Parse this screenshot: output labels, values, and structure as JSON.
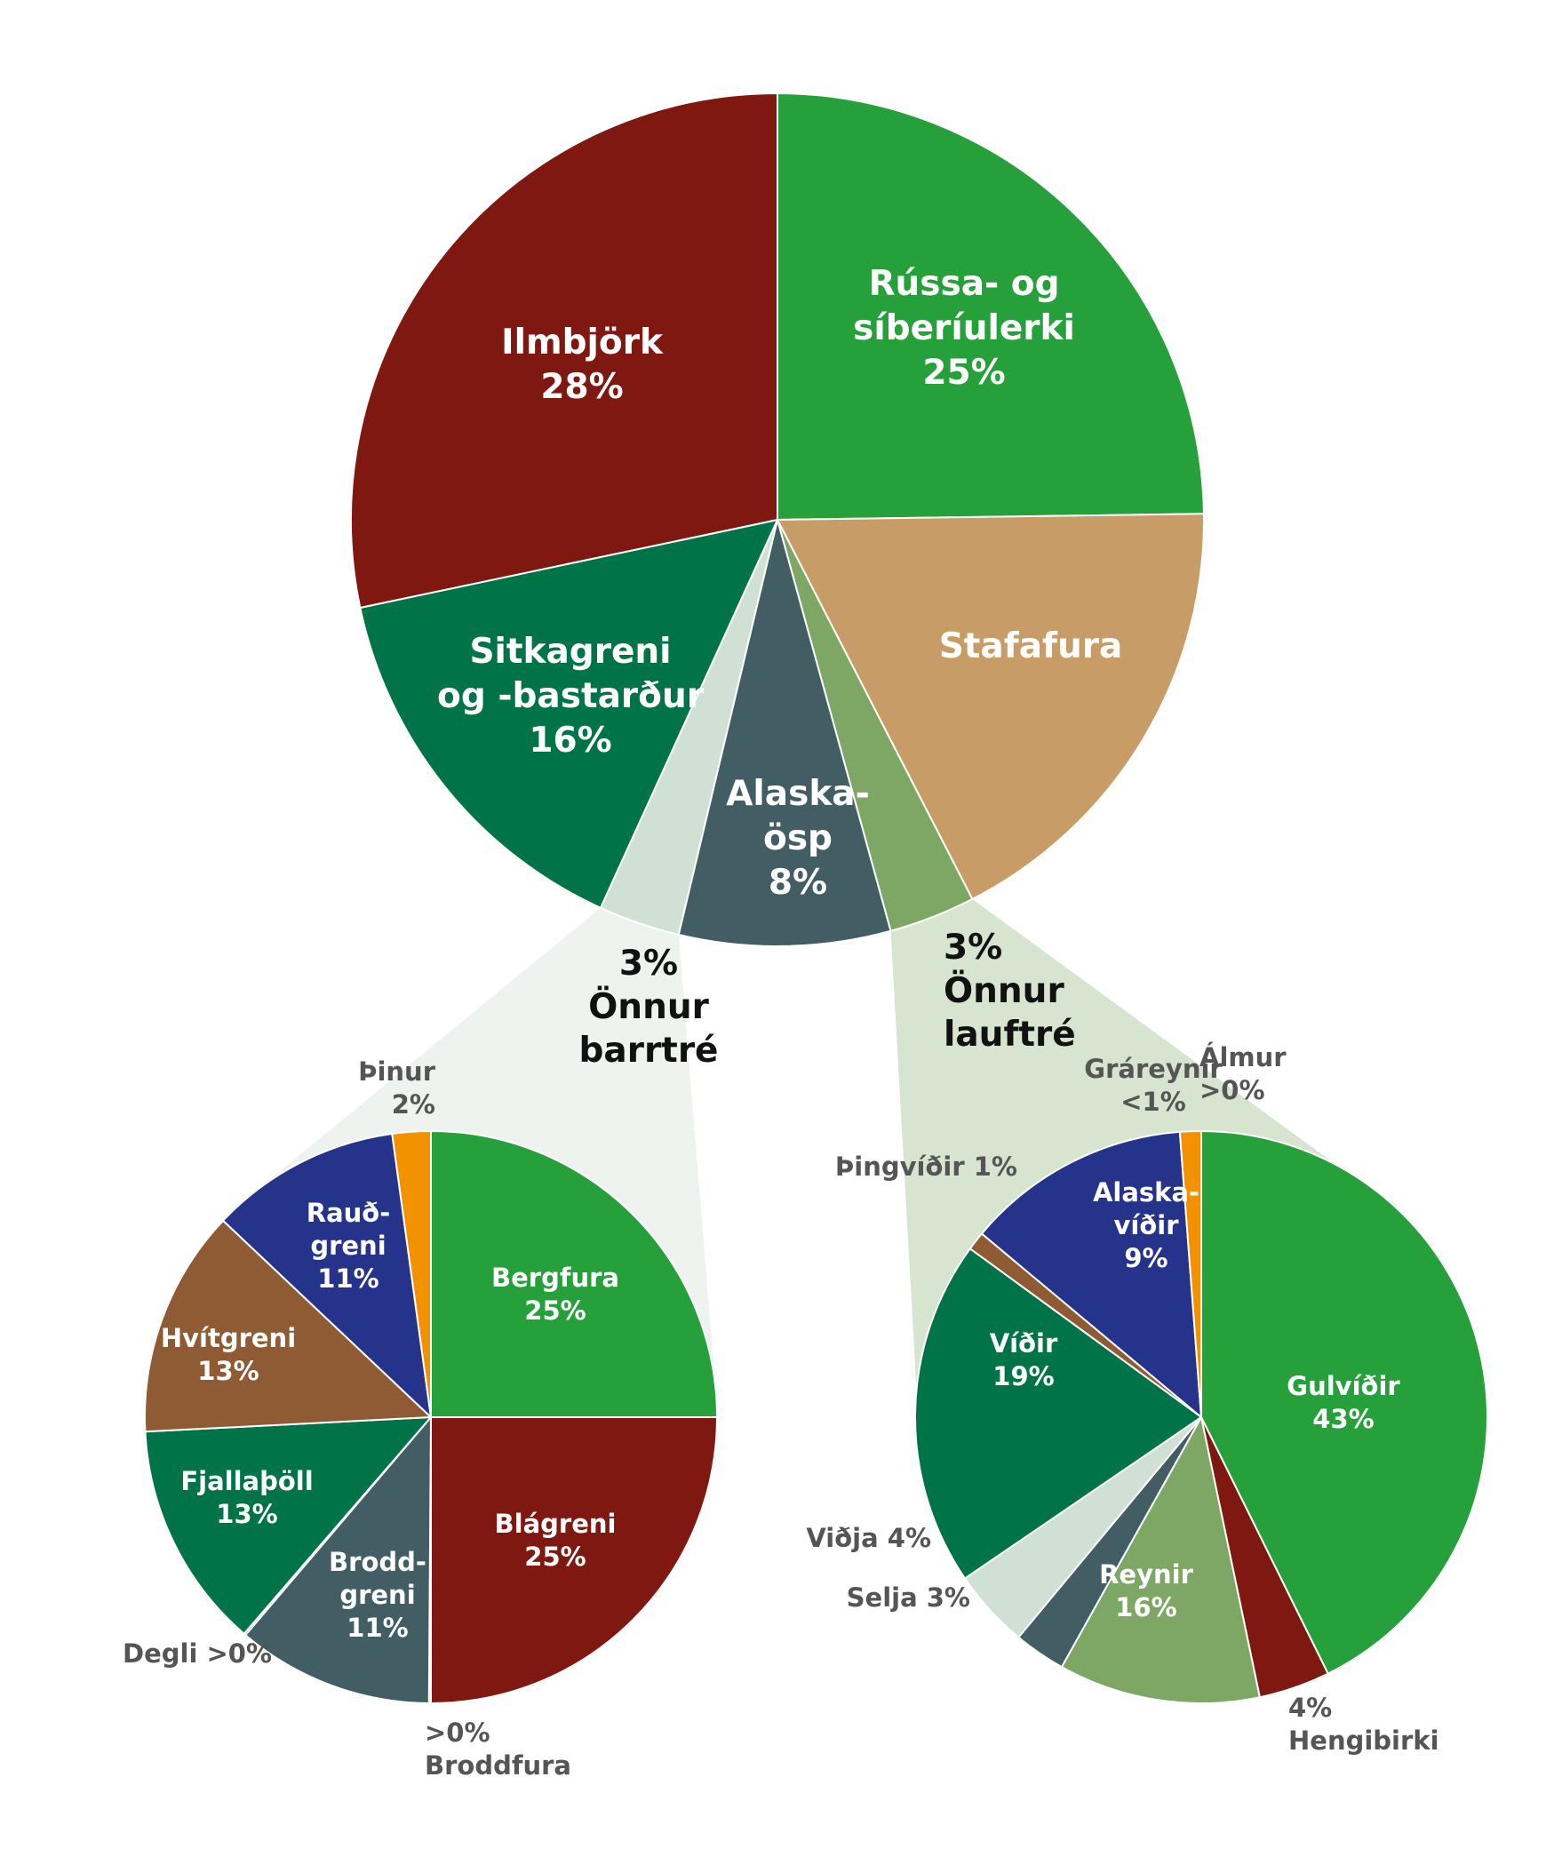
{
  "chart_data": [
    {
      "id": "main",
      "type": "pie",
      "title": "",
      "slices": [
        {
          "label": "Rússa- og síberíulerki",
          "value": 25,
          "display": [
            "Rússa- og",
            "síberíulerki",
            "25%"
          ],
          "color": "#26a03a"
        },
        {
          "label": "Stafafura",
          "value": 17,
          "display": [
            "Stafafura"
          ],
          "color": "#c89c66"
        },
        {
          "label": "Önnur lauftré",
          "value": 3,
          "display": [],
          "color": "#7ea766"
        },
        {
          "label": "Alaskaösp",
          "value": 8,
          "display": [
            "Alaska-",
            "ösp",
            "8%"
          ],
          "color": "#425d63"
        },
        {
          "label": "Önnur barrtré",
          "value": 3,
          "display": [],
          "color": "#d1e0d5"
        },
        {
          "label": "Sitkagreni og -bastarður",
          "value": 16,
          "display": [
            "Sitkagreni",
            "og -bastarður",
            "16%"
          ],
          "color": "#007448"
        },
        {
          "label": "Ilmbjörk",
          "value": 28,
          "display": [
            "Ilmbjörk",
            "28%"
          ],
          "color": "#7f1810"
        }
      ]
    },
    {
      "id": "barrtre",
      "type": "pie",
      "title": "",
      "slices": [
        {
          "label": "Bergfura",
          "value": 25,
          "display": [
            "Bergfura",
            "25%"
          ],
          "color": "#26a03a"
        },
        {
          "label": "Blágreni",
          "value": 25,
          "display": [
            "Blágreni",
            "25%"
          ],
          "color": "#7f1810"
        },
        {
          "label": "Broddfura",
          "value": 0,
          "display": [
            ">0%",
            "Broddfura"
          ],
          "color": "#425d63"
        },
        {
          "label": "Broddgreni",
          "value": 11,
          "display": [
            "Brodd-",
            "greni",
            "11%"
          ],
          "color": "#425d63"
        },
        {
          "label": "Degli",
          "value": 0,
          "display": [
            "Degli >0%"
          ],
          "color": "#007448"
        },
        {
          "label": "Fjallaþöll",
          "value": 13,
          "display": [
            "Fjallaþöll",
            "13%"
          ],
          "color": "#007448"
        },
        {
          "label": "Hvítgreni",
          "value": 13,
          "display": [
            "Hvítgreni",
            "13%"
          ],
          "color": "#8e5b34"
        },
        {
          "label": "Rauðgreni",
          "value": 11,
          "display": [
            "Rauð-",
            "greni",
            "11%"
          ],
          "color": "#26338b"
        },
        {
          "label": "Þinur",
          "value": 2,
          "display": [
            "Þinur",
            "2%"
          ],
          "color": "#f39200"
        }
      ]
    },
    {
      "id": "lauftre",
      "type": "pie",
      "title": "",
      "slices": [
        {
          "label": "Gulvíðir",
          "value": 43,
          "display": [
            "Gulvíðir",
            "43%"
          ],
          "color": "#26a03a"
        },
        {
          "label": "Hengibirki",
          "value": 4,
          "display": [
            "4%",
            "Hengibirki"
          ],
          "color": "#7f1810"
        },
        {
          "label": "Reynir",
          "value": 16,
          "display": [
            "Reynir",
            "16%"
          ],
          "color": "#7ea766"
        },
        {
          "label": "Selja",
          "value": 3,
          "display": [
            "Selja 3%"
          ],
          "color": "#425d63"
        },
        {
          "label": "Viðja",
          "value": 4,
          "display": [
            "Viðja 4%"
          ],
          "color": "#d1e0d5"
        },
        {
          "label": "Víðir",
          "value": 19,
          "display": [
            "Víðir",
            "19%"
          ],
          "color": "#007448"
        },
        {
          "label": "Þingvíðir",
          "value": 1,
          "display": [
            "Þingvíðir 1%"
          ],
          "color": "#8e5b34"
        },
        {
          "label": "Alaskavíðir",
          "value": 9,
          "display": [
            "Alaska-",
            "víðir",
            "9%"
          ],
          "color": "#26338b"
        },
        {
          "label": "Gráreynir",
          "value": 1,
          "display": [
            "Gráreynir",
            "<1%"
          ],
          "color": "#f39200"
        },
        {
          "label": "Álmur",
          "value": 0,
          "display": [
            "Álmur",
            ">0%"
          ],
          "color": "#8e5b34"
        }
      ]
    }
  ],
  "callouts": {
    "barrtre": [
      "3%",
      "Önnur",
      "barrtré"
    ],
    "lauftre": [
      "3%",
      "Önnur",
      "lauftré"
    ]
  },
  "connector_colors": {
    "barrtre": "#eef3ef",
    "lauftre": "#d7e4cf"
  }
}
